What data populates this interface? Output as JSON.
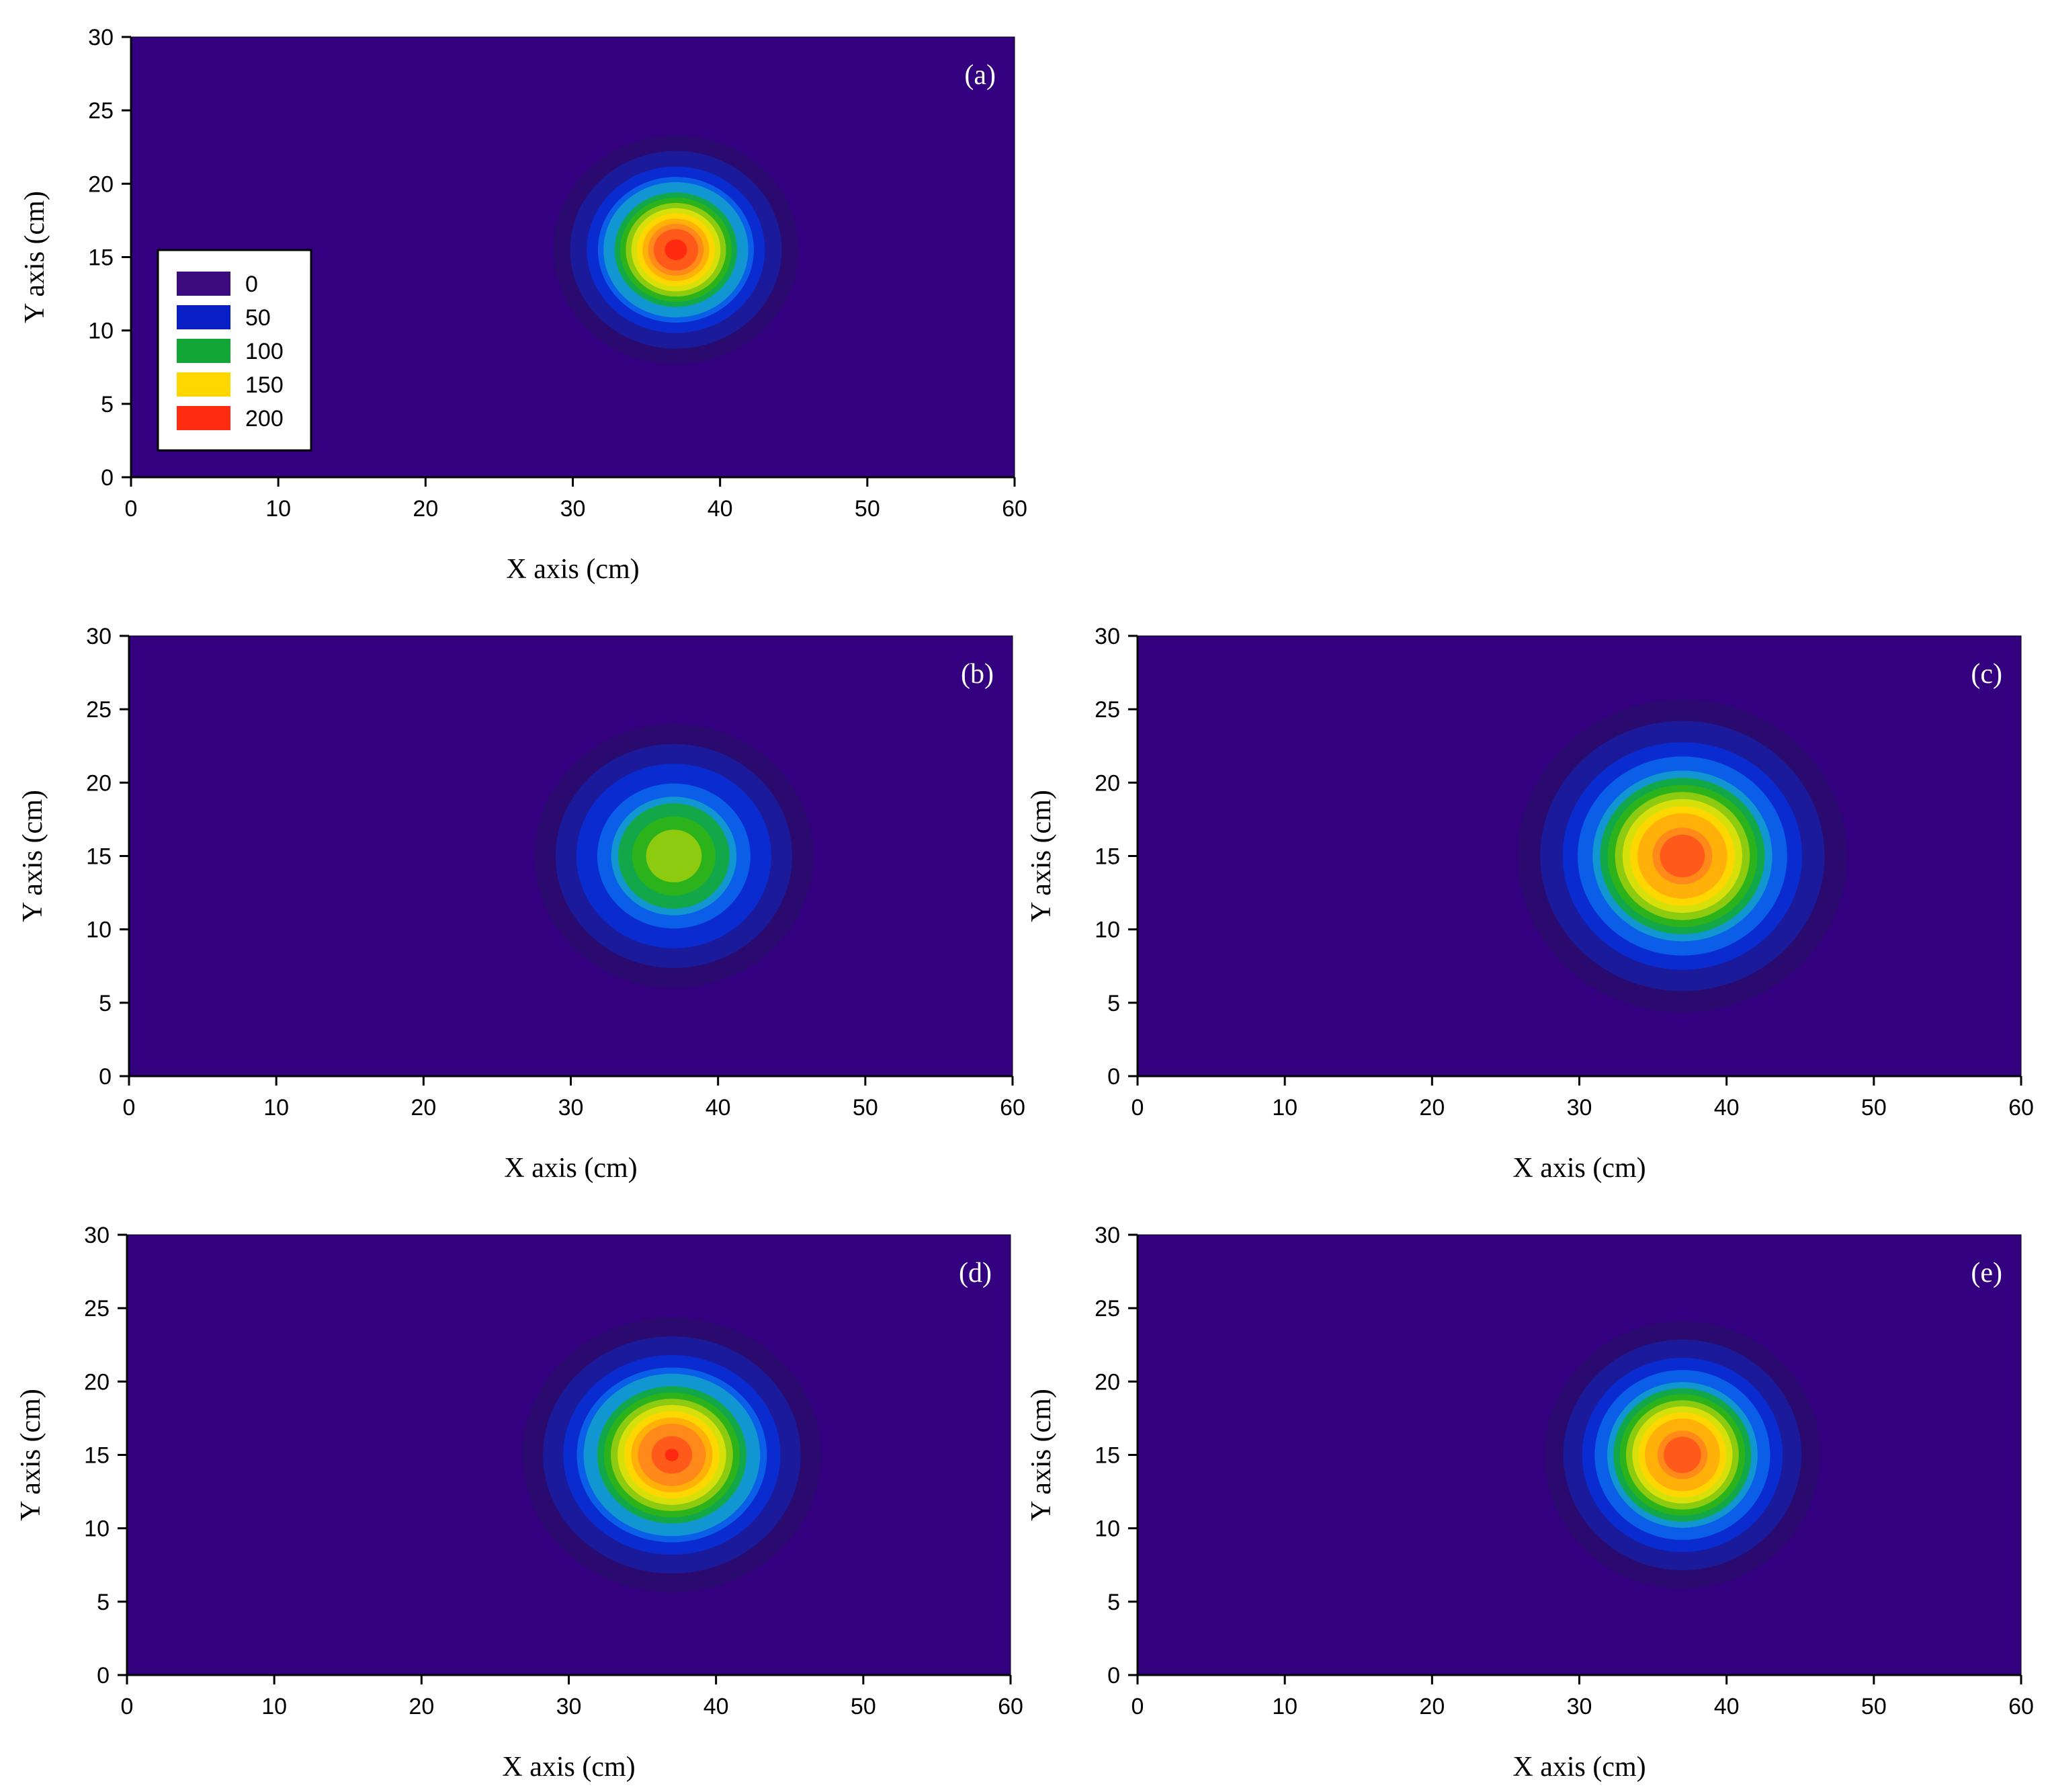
{
  "colors": {
    "background": "#330080",
    "page": "#ffffff",
    "axis": "#000000",
    "levels": [
      "#2a0a6e",
      "#1a1a9a",
      "#0a2bd0",
      "#0b5ee8",
      "#1296d2",
      "#12a84a",
      "#2cb31b",
      "#8ccb10",
      "#d8e00b",
      "#ffd700",
      "#ffb10a",
      "#ff8a1a",
      "#ff5a1a",
      "#ff2a10"
    ]
  },
  "legend": {
    "items": [
      {
        "label": "0",
        "color": "#3b0a7d"
      },
      {
        "label": "50",
        "color": "#0a1ec6"
      },
      {
        "label": "100",
        "color": "#12a636"
      },
      {
        "label": "150",
        "color": "#ffd700"
      },
      {
        "label": "200",
        "color": "#ff2a10"
      }
    ]
  },
  "chart_data": [
    {
      "type": "heatmap",
      "panel": "(a)",
      "xlabel": "X axis (cm)",
      "ylabel": "Y axis (cm)",
      "xlim": [
        0,
        60
      ],
      "ylim": [
        0,
        30
      ],
      "xticks": [
        "0",
        "10",
        "20",
        "30",
        "40",
        "50",
        "60"
      ],
      "yticks": [
        "0",
        "5",
        "10",
        "15",
        "20",
        "25",
        "30"
      ],
      "levels": [
        0,
        50,
        100,
        150,
        200
      ],
      "peak": {
        "x": 37,
        "y": 15.5,
        "value": 205
      },
      "spread_cm": {
        "sx": 3.2,
        "sy": 3.0
      }
    },
    {
      "type": "heatmap",
      "panel": "(b)",
      "xlabel": "X axis (cm)",
      "ylabel": "Y axis (cm)",
      "xlim": [
        0,
        60
      ],
      "ylim": [
        0,
        30
      ],
      "xticks": [
        "0",
        "10",
        "20",
        "30",
        "40",
        "50",
        "60"
      ],
      "yticks": [
        "0",
        "5",
        "10",
        "15",
        "20",
        "25",
        "30"
      ],
      "levels": [
        0,
        50,
        100,
        150,
        200
      ],
      "peak": {
        "x": 37,
        "y": 15,
        "value": 120
      },
      "spread_cm": {
        "sx": 4.0,
        "sy": 3.8
      }
    },
    {
      "type": "heatmap",
      "panel": "(c)",
      "xlabel": "X axis (cm)",
      "ylabel": "Y axis (cm)",
      "xlim": [
        0,
        60
      ],
      "ylim": [
        0,
        30
      ],
      "xticks": [
        "0",
        "10",
        "20",
        "30",
        "40",
        "50",
        "60"
      ],
      "yticks": [
        "0",
        "5",
        "10",
        "15",
        "20",
        "25",
        "30"
      ],
      "levels": [
        0,
        50,
        100,
        150,
        200
      ],
      "peak": {
        "x": 37,
        "y": 15,
        "value": 195
      },
      "spread_cm": {
        "sx": 4.3,
        "sy": 4.1
      }
    },
    {
      "type": "heatmap",
      "panel": "(d)",
      "xlabel": "X axis (cm)",
      "ylabel": "Y axis (cm)",
      "xlim": [
        0,
        60
      ],
      "ylim": [
        0,
        30
      ],
      "xticks": [
        "0",
        "10",
        "20",
        "30",
        "40",
        "50",
        "60"
      ],
      "yticks": [
        "0",
        "5",
        "10",
        "15",
        "20",
        "25",
        "30"
      ],
      "levels": [
        0,
        50,
        100,
        150,
        200
      ],
      "peak": {
        "x": 37,
        "y": 15,
        "value": 200
      },
      "spread_cm": {
        "sx": 3.9,
        "sy": 3.6
      }
    },
    {
      "type": "heatmap",
      "panel": "(e)",
      "xlabel": "X axis (cm)",
      "ylabel": "Y axis (cm)",
      "xlim": [
        0,
        60
      ],
      "ylim": [
        0,
        30
      ],
      "xticks": [
        "0",
        "10",
        "20",
        "30",
        "40",
        "50",
        "60"
      ],
      "yticks": [
        "0",
        "5",
        "10",
        "15",
        "20",
        "25",
        "30"
      ],
      "levels": [
        0,
        50,
        100,
        150,
        200
      ],
      "peak": {
        "x": 37,
        "y": 15,
        "value": 195
      },
      "spread_cm": {
        "sx": 3.6,
        "sy": 3.5
      }
    }
  ]
}
